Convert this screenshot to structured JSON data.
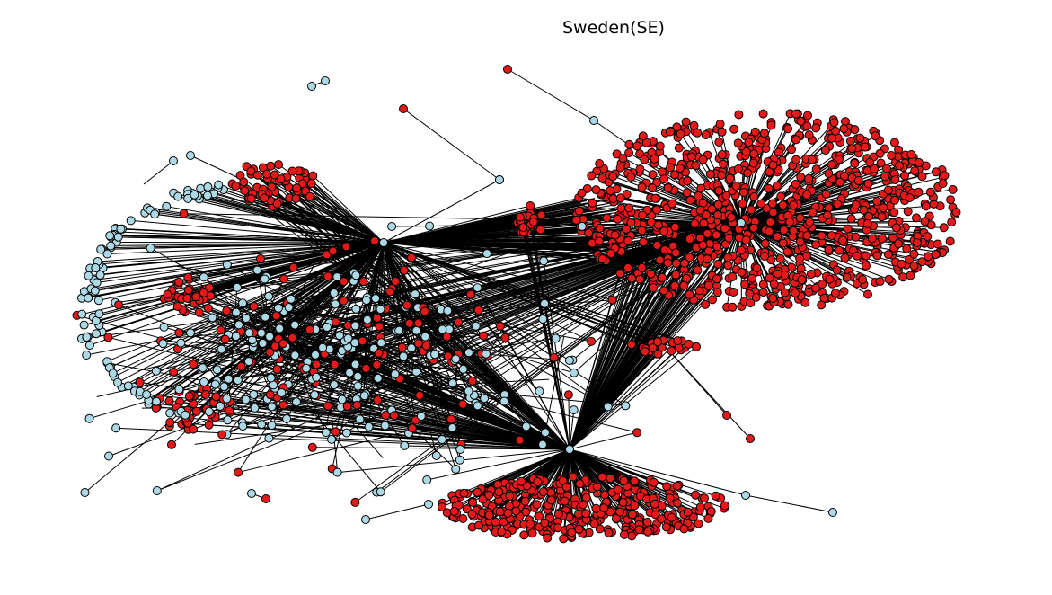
{
  "title": "Sweden(SE)",
  "colors": {
    "red_node": "#e41a1a",
    "blue_node": "#add8e6",
    "node_outline": "#000000",
    "edge": "#000000",
    "background": "#ffffff"
  },
  "graph": {
    "type": "network",
    "node_types": [
      "red",
      "light-blue"
    ],
    "hubs": [
      "hub-top-center",
      "hub-right-cluster",
      "hub-bottom-center",
      "hub-upper-mid"
    ]
  }
}
